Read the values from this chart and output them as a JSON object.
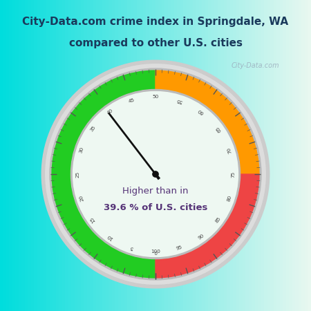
{
  "title_line1": "City-Data.com crime index in Springdale, WA",
  "title_line2": "compared to other U.S. cities",
  "title_color": "#1a3a5c",
  "title_bg_color": "#00FFFF",
  "bg_left_color": "#00DDDD",
  "bg_right_color": "#e8f8f0",
  "gauge_inner_color": "#eef8f2",
  "outer_ring_color": "#d8d8d8",
  "label_text_line1": "Higher than in",
  "label_text_line2": "39.6 % of U.S. cities",
  "value": 39.6,
  "green_color": "#22cc22",
  "orange_color": "#ff9900",
  "red_color": "#ee4444",
  "needle_color": "#111111",
  "text_color": "#553377",
  "tick_color": "#666666",
  "watermark_text": "City-Data.com",
  "figsize": [
    4.5,
    4.5
  ],
  "dpi": 100
}
